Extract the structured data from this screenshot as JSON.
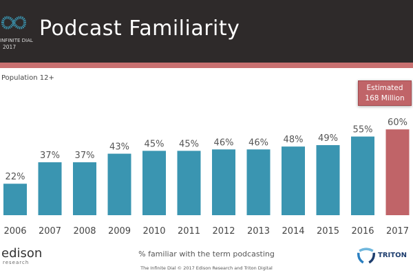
{
  "header": {
    "title": "Podcast Familiarity",
    "logo_name": "INFINITE DIAL",
    "logo_year": "2017"
  },
  "subtitle": "Population   12+",
  "callout": {
    "line1": "Estimated",
    "line2": "168 Million"
  },
  "caption": "% familiar  with the term podcasting",
  "footer": "The Infinite Dial   © 2017 Edison Research and Triton Digital",
  "logos": {
    "edison": "edison",
    "edison_sub": "research",
    "triton": "TRITON"
  },
  "colors": {
    "bar": "#3a95b1",
    "highlight": "#c06468",
    "header": "#2e2a2a",
    "stripe": "#c87070"
  },
  "chart_data": {
    "type": "bar",
    "categories": [
      "2006",
      "2007",
      "2008",
      "2009",
      "2010",
      "2011",
      "2012",
      "2013",
      "2014",
      "2015",
      "2016",
      "2017"
    ],
    "values": [
      22,
      37,
      37,
      43,
      45,
      45,
      46,
      46,
      48,
      49,
      55,
      60
    ],
    "labels": [
      "22%",
      "37%",
      "37%",
      "43%",
      "45%",
      "45%",
      "46%",
      "46%",
      "48%",
      "49%",
      "55%",
      "60%"
    ],
    "highlight_category": "2017",
    "unit": "%",
    "ylim": [
      0,
      60
    ],
    "grid": false
  }
}
